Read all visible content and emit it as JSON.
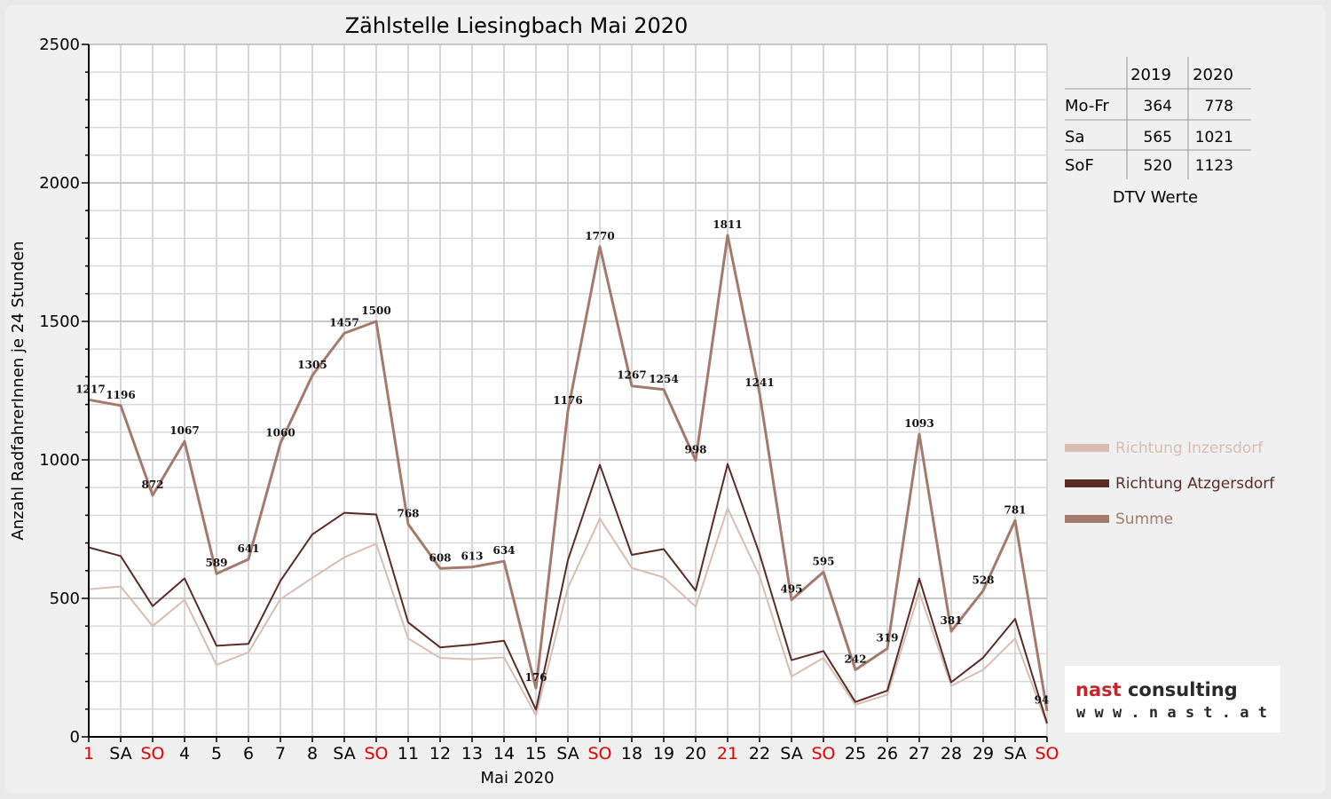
{
  "chart_data": {
    "type": "line",
    "title": "Zählstelle Liesingbach Mai 2020",
    "xlabel": "Mai 2020",
    "ylabel": "Anzahl RadfahrerInnen je 24 Stunden",
    "ylim": [
      0,
      2500
    ],
    "yticks": [
      0,
      500,
      1000,
      1500,
      2000,
      2500
    ],
    "grid": true,
    "legend_position": "right",
    "categories": [
      "1",
      "SA",
      "SO",
      "4",
      "5",
      "6",
      "7",
      "8",
      "SA",
      "SO",
      "11",
      "12",
      "13",
      "14",
      "15",
      "SA",
      "SO",
      "18",
      "19",
      "20",
      "21",
      "22",
      "SA",
      "SO",
      "25",
      "26",
      "27",
      "28",
      "29",
      "SA",
      "SO"
    ],
    "red_categories": [
      0,
      2,
      9,
      16,
      20,
      23,
      30
    ],
    "series": [
      {
        "name": "Richtung Inzersdorf",
        "color": "#d9bdb0",
        "values": [
          533,
          543,
          400,
          495,
          260,
          305,
          497,
          574,
          648,
          697,
          355,
          285,
          280,
          287,
          78,
          538,
          788,
          610,
          576,
          470,
          826,
          580,
          218,
          285,
          116,
          152,
          522,
          184,
          242,
          355,
          45
        ]
      },
      {
        "name": "Richtung Atzgersdorf",
        "color": "#5a2c24",
        "values": [
          684,
          653,
          472,
          572,
          329,
          336,
          563,
          731,
          809,
          803,
          413,
          323,
          333,
          347,
          98,
          638,
          982,
          657,
          678,
          528,
          985,
          661,
          277,
          310,
          126,
          167,
          571,
          197,
          286,
          426,
          49
        ]
      },
      {
        "name": "Summe",
        "color": "#a37a6c",
        "values": [
          1217,
          1196,
          872,
          1067,
          589,
          641,
          1060,
          1305,
          1457,
          1500,
          768,
          608,
          613,
          634,
          176,
          1176,
          1770,
          1267,
          1254,
          998,
          1811,
          1241,
          495,
          595,
          242,
          319,
          1093,
          381,
          528,
          781,
          94
        ]
      }
    ],
    "data_labels": [
      "1217",
      "1196",
      "872",
      "1067",
      "589",
      "641",
      "1060",
      "1305",
      "1457",
      "1500",
      "768",
      "608",
      "613",
      "634",
      "176",
      "1176",
      "1770",
      "1267",
      "1254",
      "998",
      "1811",
      "1241",
      "495",
      "595",
      "242",
      "319",
      "1093",
      "381",
      "528",
      "781",
      "94"
    ]
  },
  "dtv_table": {
    "headers": [
      "",
      "2019",
      "2020"
    ],
    "rows": [
      {
        "label": "Mo-Fr",
        "v2019": "364",
        "v2020": "778"
      },
      {
        "label": "Sa",
        "v2019": "565",
        "v2020": "1021"
      },
      {
        "label": "SoF",
        "v2019": "520",
        "v2020": "1123"
      }
    ],
    "caption": "DTV Werte"
  },
  "logo": {
    "line1": "nast consulting",
    "line2": "w w w . n a s t . a t",
    "accent": "#c0262c"
  },
  "colors": {
    "grid": "#d8d8d8",
    "axis": "#000000",
    "tick_red": "#e60000",
    "tick_black": "#000000"
  }
}
